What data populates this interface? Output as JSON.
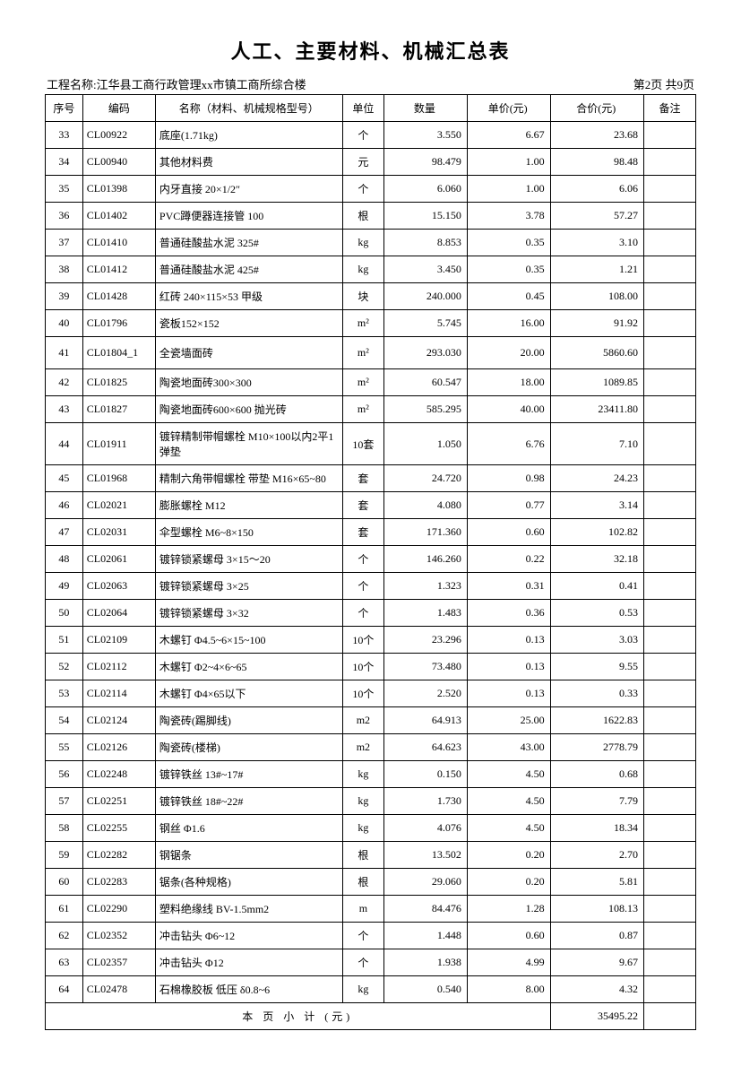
{
  "title": "人工、主要材料、机械汇总表",
  "project_label": "工程名称:江华县工商行政管理xx市镇工商所综合楼",
  "page_info": "第2页 共9页",
  "columns": {
    "seq": "序号",
    "code": "编码",
    "name": "名称（材料、机械规格型号）",
    "unit": "单位",
    "qty": "数量",
    "price": "单价(元)",
    "total": "合价(元)",
    "remark": "备注"
  },
  "rows": [
    {
      "seq": "33",
      "code": "CL00922",
      "name": "底座(1.71kg)",
      "unit": "个",
      "qty": "3.550",
      "price": "6.67",
      "total": "23.68",
      "remark": ""
    },
    {
      "seq": "34",
      "code": "CL00940",
      "name": "其他材料费",
      "unit": "元",
      "qty": "98.479",
      "price": "1.00",
      "total": "98.48",
      "remark": ""
    },
    {
      "seq": "35",
      "code": "CL01398",
      "name": "内牙直接 20×1/2″",
      "unit": "个",
      "qty": "6.060",
      "price": "1.00",
      "total": "6.06",
      "remark": ""
    },
    {
      "seq": "36",
      "code": "CL01402",
      "name": "PVC蹲便器连接管 100",
      "unit": "根",
      "qty": "15.150",
      "price": "3.78",
      "total": "57.27",
      "remark": ""
    },
    {
      "seq": "37",
      "code": "CL01410",
      "name": "普通硅酸盐水泥 325#",
      "unit": "kg",
      "qty": "8.853",
      "price": "0.35",
      "total": "3.10",
      "remark": ""
    },
    {
      "seq": "38",
      "code": "CL01412",
      "name": "普通硅酸盐水泥 425#",
      "unit": "kg",
      "qty": "3.450",
      "price": "0.35",
      "total": "1.21",
      "remark": ""
    },
    {
      "seq": "39",
      "code": "CL01428",
      "name": "红砖 240×115×53 甲级",
      "unit": "块",
      "qty": "240.000",
      "price": "0.45",
      "total": "108.00",
      "remark": ""
    },
    {
      "seq": "40",
      "code": "CL01796",
      "name": "瓷板152×152",
      "unit": "m²",
      "qty": "5.745",
      "price": "16.00",
      "total": "91.92",
      "remark": ""
    },
    {
      "seq": "41",
      "code": "CL01804_1",
      "name": "全瓷墙面砖",
      "unit": "m²",
      "qty": "293.030",
      "price": "20.00",
      "total": "5860.60",
      "remark": "",
      "tall": true
    },
    {
      "seq": "42",
      "code": "CL01825",
      "name": "陶瓷地面砖300×300",
      "unit": "m²",
      "qty": "60.547",
      "price": "18.00",
      "total": "1089.85",
      "remark": ""
    },
    {
      "seq": "43",
      "code": "CL01827",
      "name": "陶瓷地面砖600×600 抛光砖",
      "unit": "m²",
      "qty": "585.295",
      "price": "40.00",
      "total": "23411.80",
      "remark": ""
    },
    {
      "seq": "44",
      "code": "CL01911",
      "name": "镀锌精制带帽螺栓 M10×100以内2平1弹垫",
      "unit": "10套",
      "qty": "1.050",
      "price": "6.76",
      "total": "7.10",
      "remark": ""
    },
    {
      "seq": "45",
      "code": "CL01968",
      "name": "精制六角带帽螺栓 带垫 M16×65~80",
      "unit": "套",
      "qty": "24.720",
      "price": "0.98",
      "total": "24.23",
      "remark": ""
    },
    {
      "seq": "46",
      "code": "CL02021",
      "name": "膨胀螺栓 M12",
      "unit": "套",
      "qty": "4.080",
      "price": "0.77",
      "total": "3.14",
      "remark": ""
    },
    {
      "seq": "47",
      "code": "CL02031",
      "name": "伞型螺栓 M6~8×150",
      "unit": "套",
      "qty": "171.360",
      "price": "0.60",
      "total": "102.82",
      "remark": ""
    },
    {
      "seq": "48",
      "code": "CL02061",
      "name": "镀锌锁紧螺母 3×15～20",
      "unit": "个",
      "qty": "146.260",
      "price": "0.22",
      "total": "32.18",
      "remark": ""
    },
    {
      "seq": "49",
      "code": "CL02063",
      "name": "镀锌锁紧螺母 3×25",
      "unit": "个",
      "qty": "1.323",
      "price": "0.31",
      "total": "0.41",
      "remark": ""
    },
    {
      "seq": "50",
      "code": "CL02064",
      "name": "镀锌锁紧螺母 3×32",
      "unit": "个",
      "qty": "1.483",
      "price": "0.36",
      "total": "0.53",
      "remark": ""
    },
    {
      "seq": "51",
      "code": "CL02109",
      "name": "木螺钉 Φ4.5~6×15~100",
      "unit": "10个",
      "qty": "23.296",
      "price": "0.13",
      "total": "3.03",
      "remark": ""
    },
    {
      "seq": "52",
      "code": "CL02112",
      "name": "木螺钉 Φ2~4×6~65",
      "unit": "10个",
      "qty": "73.480",
      "price": "0.13",
      "total": "9.55",
      "remark": ""
    },
    {
      "seq": "53",
      "code": "CL02114",
      "name": "木螺钉 Φ4×65以下",
      "unit": "10个",
      "qty": "2.520",
      "price": "0.13",
      "total": "0.33",
      "remark": ""
    },
    {
      "seq": "54",
      "code": "CL02124",
      "name": "陶瓷砖(踢脚线)",
      "unit": "m2",
      "qty": "64.913",
      "price": "25.00",
      "total": "1622.83",
      "remark": ""
    },
    {
      "seq": "55",
      "code": "CL02126",
      "name": "陶瓷砖(楼梯)",
      "unit": "m2",
      "qty": "64.623",
      "price": "43.00",
      "total": "2778.79",
      "remark": ""
    },
    {
      "seq": "56",
      "code": "CL02248",
      "name": "镀锌铁丝 13#~17#",
      "unit": "kg",
      "qty": "0.150",
      "price": "4.50",
      "total": "0.68",
      "remark": ""
    },
    {
      "seq": "57",
      "code": "CL02251",
      "name": "镀锌铁丝 18#~22#",
      "unit": "kg",
      "qty": "1.730",
      "price": "4.50",
      "total": "7.79",
      "remark": ""
    },
    {
      "seq": "58",
      "code": "CL02255",
      "name": "钢丝 Φ1.6",
      "unit": "kg",
      "qty": "4.076",
      "price": "4.50",
      "total": "18.34",
      "remark": ""
    },
    {
      "seq": "59",
      "code": "CL02282",
      "name": "钢锯条",
      "unit": "根",
      "qty": "13.502",
      "price": "0.20",
      "total": "2.70",
      "remark": ""
    },
    {
      "seq": "60",
      "code": "CL02283",
      "name": "锯条(各种规格)",
      "unit": "根",
      "qty": "29.060",
      "price": "0.20",
      "total": "5.81",
      "remark": ""
    },
    {
      "seq": "61",
      "code": "CL02290",
      "name": "塑料绝缘线 BV-1.5mm2",
      "unit": "m",
      "qty": "84.476",
      "price": "1.28",
      "total": "108.13",
      "remark": ""
    },
    {
      "seq": "62",
      "code": "CL02352",
      "name": "冲击钻头 Φ6~12",
      "unit": "个",
      "qty": "1.448",
      "price": "0.60",
      "total": "0.87",
      "remark": ""
    },
    {
      "seq": "63",
      "code": "CL02357",
      "name": "冲击钻头 Φ12",
      "unit": "个",
      "qty": "1.938",
      "price": "4.99",
      "total": "9.67",
      "remark": ""
    },
    {
      "seq": "64",
      "code": "CL02478",
      "name": "石棉橡胶板 低压 δ0.8~6",
      "unit": "kg",
      "qty": "0.540",
      "price": "8.00",
      "total": "4.32",
      "remark": ""
    }
  ],
  "subtotal_label": "本 页 小 计 (元)",
  "subtotal_value": "35495.22"
}
